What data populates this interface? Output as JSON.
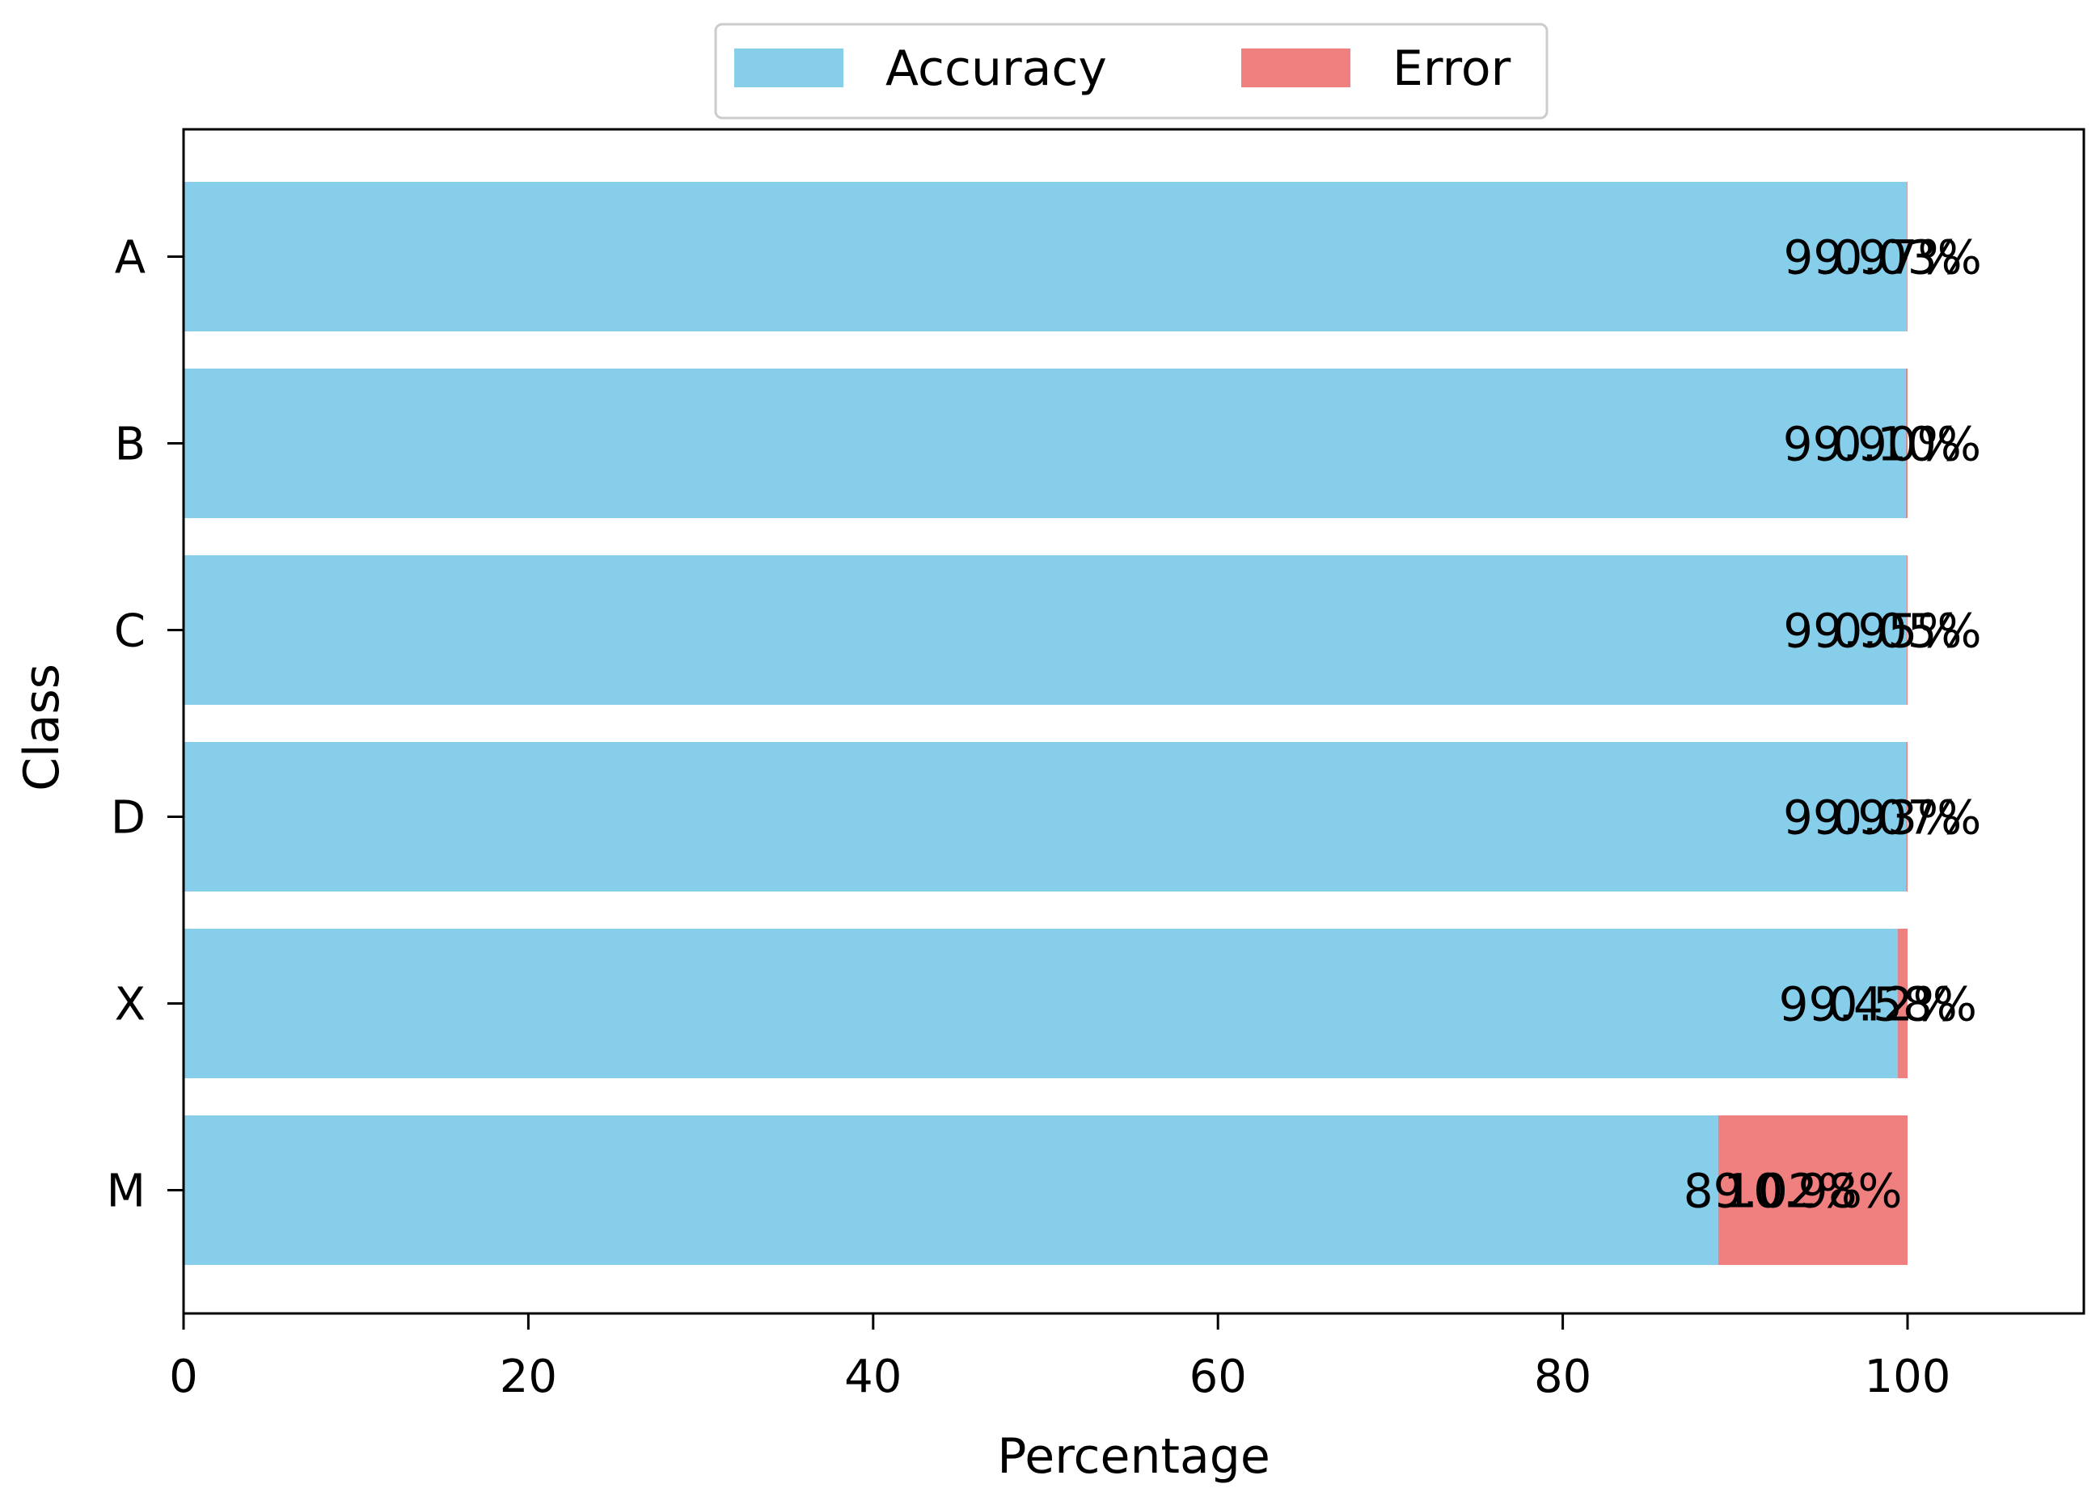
{
  "chart_data": {
    "type": "bar",
    "orientation": "horizontal",
    "stacked": true,
    "categories": [
      "A",
      "B",
      "C",
      "D",
      "X",
      "M"
    ],
    "series": [
      {
        "name": "Accuracy",
        "color": "#87CEEB",
        "values": [
          99.97,
          99.9,
          99.95,
          99.93,
          99.42,
          89.02
        ],
        "labels": [
          "99.97%",
          "99.90%",
          "99.95%",
          "99.93%",
          "99.42%",
          "89.02%"
        ]
      },
      {
        "name": "Error",
        "color": "#F08080",
        "values": [
          0.03,
          0.1,
          0.05,
          0.07,
          0.58,
          10.98
        ],
        "labels": [
          "0.03%",
          "0.10%",
          "0.05%",
          "0.07%",
          "0.58%",
          "10.98%"
        ]
      }
    ],
    "xlabel": "Percentage",
    "ylabel": "Class",
    "xlim": [
      0,
      110
    ],
    "xticks": [
      "0",
      "20",
      "40",
      "60",
      "80",
      "100"
    ],
    "grid": false,
    "legend_position": "top-center"
  }
}
